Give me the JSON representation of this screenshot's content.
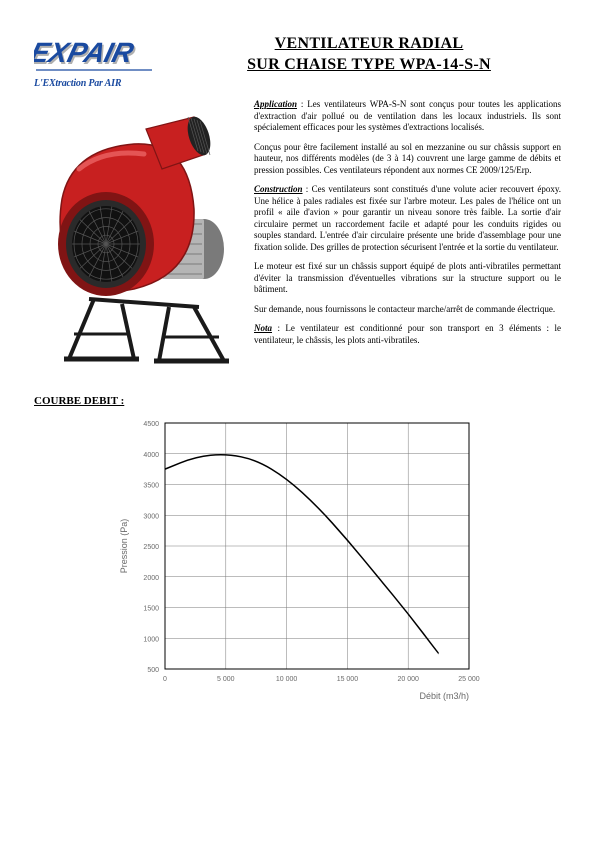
{
  "logo": {
    "text": "EXPAIR",
    "tagline": "L'EXtraction Par AIR",
    "text_color": "#1a4aa0",
    "shadow_color": "#b0b0b0"
  },
  "title": {
    "line1": "VENTILATEUR RADIAL",
    "line2": "SUR CHAISE TYPE WPA-14-S-N"
  },
  "paragraphs": {
    "application_label": "Application",
    "application": " : Les ventilateurs WPA-S-N sont conçus pour toutes les applications d'extraction d'air pollué ou de ventilation dans les locaux industriels. Ils sont spécialement efficaces pour les systèmes d'extractions localisés.",
    "application2": "Conçus pour être facilement installé au sol en mezzanine ou sur châssis support en hauteur, nos différents modèles (de 3 à 14) couvrent une large gamme de débits et pression possibles. Ces ventilateurs répondent aux normes CE 2009/125/Erp.",
    "construction_label": "Construction",
    "construction": " : Ces ventilateurs sont constitués d'une volute acier recouvert époxy. Une hélice à pales radiales est fixée sur l'arbre moteur. Les pales de l'hélice ont un profil « aile d'avion » pour garantir un niveau sonore très faible. La sortie d'air circulaire permet un raccordement facile et adapté pour les conduits rigides ou souples standard. L'entrée d'air circulaire présente une bride d'assemblage pour une fixation solide. Des grilles de protection sécurisent l'entrée et la sortie du ventilateur.",
    "construction2": "Le moteur est fixé sur un châssis support équipé de plots anti-vibratiles permettant d'éviter la transmission d'éventuelles vibrations sur la structure support ou le bâtiment.",
    "construction3": "Sur demande, nous fournissons le contacteur marche/arrêt de commande électrique.",
    "nota_label": "Nota",
    "nota": " : Le ventilateur est conditionné pour son transport en 3 éléments :    le ventilateur, le châssis, les plots anti-vibratiles."
  },
  "chart_section_title": "COURBE DEBIT :",
  "chart": {
    "type": "line",
    "xlabel": "Débit (m3/h)",
    "ylabel": "Pression (Pa)",
    "xlim": [
      0,
      25000
    ],
    "ylim": [
      500,
      4500
    ],
    "xtick_step": 5000,
    "ytick_step": 500,
    "xticks": [
      0,
      5000,
      10000,
      15000,
      20000,
      25000
    ],
    "xtick_labels": [
      "0",
      "5 000",
      "10 000",
      "15 000",
      "20 000",
      "25 000"
    ],
    "yticks": [
      500,
      1000,
      1500,
      2000,
      2500,
      3000,
      3500,
      4000,
      4500
    ],
    "ytick_labels": [
      "500",
      "1000",
      "1500",
      "2000",
      "2500",
      "3000",
      "3500",
      "4000",
      "4500"
    ],
    "line_color": "#000000",
    "line_width": 1.5,
    "grid_color": "#7a7a7a",
    "grid_width": 0.5,
    "border_color": "#000000",
    "border_width": 1,
    "background": "#ffffff",
    "label_color": "#6a6a6a",
    "label_fontsize": 7,
    "axis_label_fontsize": 9,
    "data": [
      [
        0,
        3750
      ],
      [
        2500,
        3950
      ],
      [
        5000,
        4000
      ],
      [
        7500,
        3900
      ],
      [
        10000,
        3600
      ],
      [
        12500,
        3150
      ],
      [
        15000,
        2600
      ],
      [
        17500,
        2000
      ],
      [
        20000,
        1400
      ],
      [
        22500,
        750
      ]
    ]
  },
  "product_colors": {
    "body": "#c82020",
    "body_dark": "#801414",
    "motor": "#b5b5b5",
    "motor_dark": "#7a7a7a",
    "grille": "#2a2a2a",
    "frame": "#1a1a1a"
  }
}
